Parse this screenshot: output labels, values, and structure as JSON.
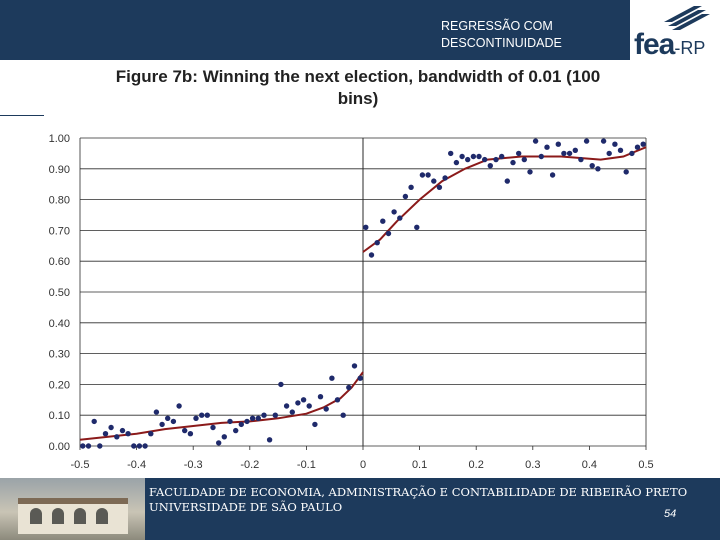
{
  "header": {
    "title_line1": "REGRESSÃO COM",
    "title_line2": "DESCONTINUIDADE"
  },
  "logo": {
    "main": "fea",
    "suffix": "-RP"
  },
  "colors": {
    "navy": "#1d3a5c",
    "points": "#1f2a6b",
    "fit": "#8b1a1a"
  },
  "footer": {
    "line1": "FACULDADE DE ECONOMIA, ADMINISTRAÇÃO E CONTABILIDADE DE RIBEIRÃO PRETO",
    "line2": "UNIVERSIDADE DE SÃO PAULO",
    "page": "54"
  },
  "chart_data": {
    "type": "scatter",
    "title": "Figure 7b: Winning the next election, bandwidth of 0.01 (100 bins)",
    "xlim": [
      -0.5,
      0.5
    ],
    "ylim": [
      0.0,
      1.0
    ],
    "x_ticks": [
      "-0.5",
      "-0.4",
      "-0.3",
      "-0.2",
      "-0.1",
      "0",
      "0.1",
      "0.2",
      "0.3",
      "0.4",
      "0.5"
    ],
    "y_ticks": [
      "0.00",
      "0.10",
      "0.20",
      "0.30",
      "0.40",
      "0.50",
      "0.60",
      "0.70",
      "0.80",
      "0.90",
      "1.00"
    ],
    "grid": "horizontal",
    "cutoff": 0.0,
    "points": [
      [
        -0.495,
        0.0
      ],
      [
        -0.485,
        0.0
      ],
      [
        -0.475,
        0.08
      ],
      [
        -0.465,
        0.0
      ],
      [
        -0.455,
        0.04
      ],
      [
        -0.445,
        0.06
      ],
      [
        -0.435,
        0.03
      ],
      [
        -0.425,
        0.05
      ],
      [
        -0.415,
        0.04
      ],
      [
        -0.405,
        0.0
      ],
      [
        -0.395,
        0.0
      ],
      [
        -0.385,
        0.0
      ],
      [
        -0.375,
        0.04
      ],
      [
        -0.365,
        0.11
      ],
      [
        -0.355,
        0.07
      ],
      [
        -0.345,
        0.09
      ],
      [
        -0.335,
        0.08
      ],
      [
        -0.325,
        0.13
      ],
      [
        -0.315,
        0.05
      ],
      [
        -0.305,
        0.04
      ],
      [
        -0.295,
        0.09
      ],
      [
        -0.285,
        0.1
      ],
      [
        -0.275,
        0.1
      ],
      [
        -0.265,
        0.06
      ],
      [
        -0.255,
        0.01
      ],
      [
        -0.245,
        0.03
      ],
      [
        -0.235,
        0.08
      ],
      [
        -0.225,
        0.05
      ],
      [
        -0.215,
        0.07
      ],
      [
        -0.205,
        0.08
      ],
      [
        -0.195,
        0.09
      ],
      [
        -0.185,
        0.09
      ],
      [
        -0.175,
        0.1
      ],
      [
        -0.165,
        0.02
      ],
      [
        -0.155,
        0.1
      ],
      [
        -0.145,
        0.2
      ],
      [
        -0.135,
        0.13
      ],
      [
        -0.125,
        0.11
      ],
      [
        -0.115,
        0.14
      ],
      [
        -0.105,
        0.15
      ],
      [
        -0.095,
        0.13
      ],
      [
        -0.085,
        0.07
      ],
      [
        -0.075,
        0.16
      ],
      [
        -0.065,
        0.12
      ],
      [
        -0.055,
        0.22
      ],
      [
        -0.045,
        0.15
      ],
      [
        -0.035,
        0.1
      ],
      [
        -0.025,
        0.19
      ],
      [
        -0.015,
        0.26
      ],
      [
        -0.005,
        0.22
      ],
      [
        0.005,
        0.71
      ],
      [
        0.015,
        0.62
      ],
      [
        0.025,
        0.66
      ],
      [
        0.035,
        0.73
      ],
      [
        0.045,
        0.69
      ],
      [
        0.055,
        0.76
      ],
      [
        0.065,
        0.74
      ],
      [
        0.075,
        0.81
      ],
      [
        0.085,
        0.84
      ],
      [
        0.095,
        0.71
      ],
      [
        0.105,
        0.88
      ],
      [
        0.115,
        0.88
      ],
      [
        0.125,
        0.86
      ],
      [
        0.135,
        0.84
      ],
      [
        0.145,
        0.87
      ],
      [
        0.155,
        0.95
      ],
      [
        0.165,
        0.92
      ],
      [
        0.175,
        0.94
      ],
      [
        0.185,
        0.93
      ],
      [
        0.195,
        0.94
      ],
      [
        0.205,
        0.94
      ],
      [
        0.215,
        0.93
      ],
      [
        0.225,
        0.91
      ],
      [
        0.235,
        0.93
      ],
      [
        0.245,
        0.94
      ],
      [
        0.255,
        0.86
      ],
      [
        0.265,
        0.92
      ],
      [
        0.275,
        0.95
      ],
      [
        0.285,
        0.93
      ],
      [
        0.295,
        0.89
      ],
      [
        0.305,
        0.99
      ],
      [
        0.315,
        0.94
      ],
      [
        0.325,
        0.97
      ],
      [
        0.335,
        0.88
      ],
      [
        0.345,
        0.98
      ],
      [
        0.355,
        0.95
      ],
      [
        0.365,
        0.95
      ],
      [
        0.375,
        0.96
      ],
      [
        0.385,
        0.93
      ],
      [
        0.395,
        0.99
      ],
      [
        0.405,
        0.91
      ],
      [
        0.415,
        0.9
      ],
      [
        0.425,
        0.99
      ],
      [
        0.435,
        0.95
      ],
      [
        0.445,
        0.98
      ],
      [
        0.455,
        0.96
      ],
      [
        0.465,
        0.89
      ],
      [
        0.475,
        0.95
      ],
      [
        0.485,
        0.97
      ],
      [
        0.495,
        0.98
      ]
    ],
    "fit_left": [
      [
        -0.5,
        0.02
      ],
      [
        -0.45,
        0.03
      ],
      [
        -0.4,
        0.04
      ],
      [
        -0.35,
        0.055
      ],
      [
        -0.3,
        0.065
      ],
      [
        -0.25,
        0.075
      ],
      [
        -0.2,
        0.08
      ],
      [
        -0.15,
        0.09
      ],
      [
        -0.1,
        0.105
      ],
      [
        -0.07,
        0.125
      ],
      [
        -0.04,
        0.155
      ],
      [
        -0.02,
        0.19
      ],
      [
        0.0,
        0.24
      ]
    ],
    "fit_right": [
      [
        0.0,
        0.63
      ],
      [
        0.03,
        0.67
      ],
      [
        0.06,
        0.73
      ],
      [
        0.1,
        0.8
      ],
      [
        0.14,
        0.86
      ],
      [
        0.18,
        0.9
      ],
      [
        0.22,
        0.93
      ],
      [
        0.28,
        0.94
      ],
      [
        0.35,
        0.94
      ],
      [
        0.42,
        0.93
      ],
      [
        0.46,
        0.94
      ],
      [
        0.5,
        0.97
      ]
    ]
  }
}
